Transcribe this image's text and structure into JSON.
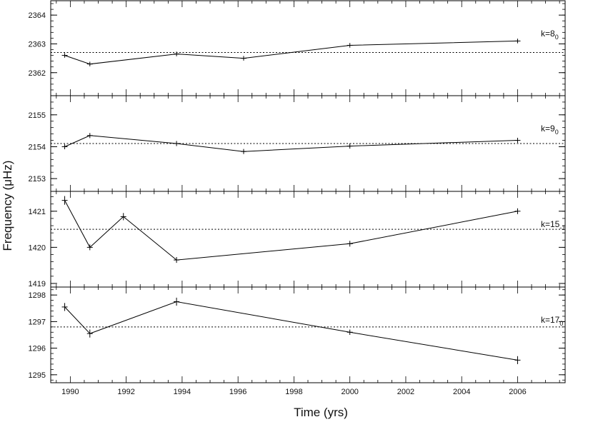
{
  "chart_data": {
    "type": "line",
    "xlabel": "Time (yrs)",
    "ylabel": "Frequency (μHz)",
    "xlim": [
      1989.3,
      2007.7
    ],
    "xticks": [
      1990,
      1992,
      1994,
      1996,
      1998,
      2000,
      2002,
      2004,
      2006
    ],
    "x_tick_labels": [
      "1990",
      "1992",
      "1994",
      "1996",
      "1998",
      "2000",
      "2002",
      "2004",
      "2006"
    ],
    "x_minor_step": 0.5,
    "grid": false,
    "panels": [
      {
        "label_main": "k=8",
        "label_sub": "0",
        "ylim": [
          2361.2,
          2364.5
        ],
        "yticks": [
          2362,
          2363,
          2364
        ],
        "y_tick_labels": [
          "2362",
          "2363",
          "2364"
        ],
        "y_minor_step": 0.2,
        "reference": 2362.7,
        "x": [
          1989.8,
          1990.7,
          1993.8,
          1996.2,
          2000.0,
          2006.0
        ],
        "y": [
          2362.6,
          2362.3,
          2362.65,
          2362.5,
          2362.95,
          2363.1
        ],
        "err": [
          0.08,
          0.08,
          0.08,
          0.08,
          0.08,
          0.08
        ]
      },
      {
        "label_main": "k=9",
        "label_sub": "0",
        "ylim": [
          2152.6,
          2155.6
        ],
        "yticks": [
          2153,
          2154,
          2155
        ],
        "y_tick_labels": [
          "2153",
          "2154",
          "2155"
        ],
        "y_minor_step": 0.2,
        "reference": 2154.1,
        "x": [
          1989.8,
          1990.7,
          1993.8,
          1996.2,
          2000.0,
          2006.0
        ],
        "y": [
          2154.0,
          2154.35,
          2154.1,
          2153.85,
          2154.02,
          2154.2
        ],
        "err": [
          0.08,
          0.08,
          0.08,
          0.08,
          0.08,
          0.08
        ]
      },
      {
        "label_main": "k=15",
        "label_sub": "-1",
        "ylim": [
          1418.9,
          1421.55
        ],
        "yticks": [
          1419,
          1420,
          1421
        ],
        "y_tick_labels": [
          "1419",
          "1420",
          "1421"
        ],
        "y_minor_step": 0.2,
        "reference": 1420.5,
        "x": [
          1989.8,
          1990.7,
          1991.9,
          1993.8,
          2000.0,
          2006.0
        ],
        "y": [
          1421.3,
          1420.0,
          1420.85,
          1419.65,
          1420.1,
          1421.0
        ],
        "err": [
          0.12,
          0.08,
          0.1,
          0.08,
          0.08,
          0.08
        ]
      },
      {
        "label_main": "k=17",
        "label_sub": "0",
        "ylim": [
          1294.7,
          1298.3
        ],
        "yticks": [
          1295,
          1296,
          1297,
          1298
        ],
        "y_tick_labels": [
          "1295",
          "1296",
          "1297",
          "1298"
        ],
        "y_minor_step": 0.2,
        "reference": 1296.8,
        "x": [
          1989.8,
          1990.7,
          1993.8,
          2000.0,
          2006.0
        ],
        "y": [
          1297.55,
          1296.55,
          1297.75,
          1296.6,
          1295.55
        ],
        "err": [
          0.15,
          0.15,
          0.15,
          0.1,
          0.15
        ]
      }
    ]
  }
}
